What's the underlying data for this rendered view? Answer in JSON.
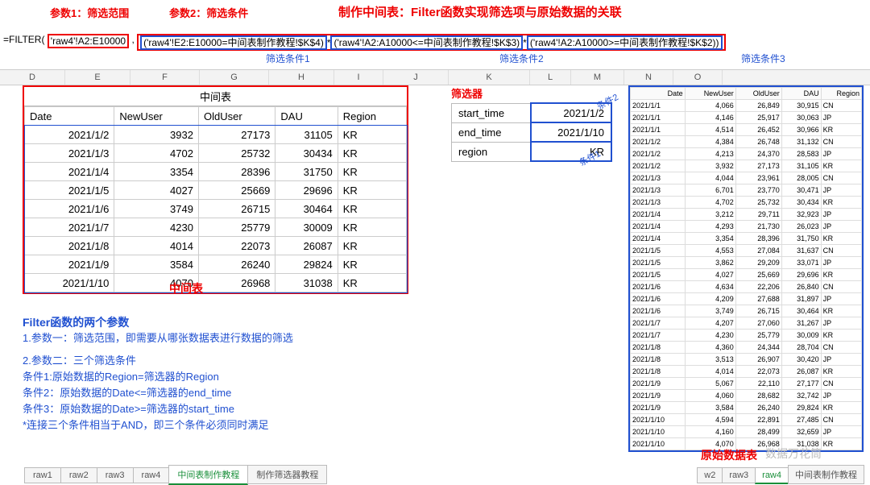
{
  "annotations": {
    "param1": "参数1：筛选范围",
    "param2": "参数2：筛选条件",
    "title": "制作中间表：Filter函数实现筛选项与原始数据的关联",
    "cond1": "筛选条件1",
    "cond2": "筛选条件2",
    "cond3": "筛选条件3",
    "midlabel": "中间表",
    "rawlabel": "原始数据表",
    "tiao1": "条件2",
    "tiao2": "条件1"
  },
  "formula": {
    "prefix": "=FILTER(",
    "range": "'raw4'!A2:E10000",
    "c1": "('raw4'!E2:E10000=中间表制作教程!$K$4)",
    "c2": "('raw4'!A2:A10000<=中间表制作教程!$K$3)",
    "c3": "('raw4'!A2:A10000>=中间表制作教程!$K$2))"
  },
  "cols": [
    "D",
    "E",
    "F",
    "G",
    "H",
    "I",
    "J",
    "K",
    "L",
    "M",
    "N",
    "O"
  ],
  "mid": {
    "title": "中间表",
    "headers": [
      "Date",
      "NewUser",
      "OldUser",
      "DAU",
      "Region"
    ],
    "rows": [
      [
        "2021/1/2",
        "3932",
        "27173",
        "31105",
        "KR"
      ],
      [
        "2021/1/3",
        "4702",
        "25732",
        "30434",
        "KR"
      ],
      [
        "2021/1/4",
        "3354",
        "28396",
        "31750",
        "KR"
      ],
      [
        "2021/1/5",
        "4027",
        "25669",
        "29696",
        "KR"
      ],
      [
        "2021/1/6",
        "3749",
        "26715",
        "30464",
        "KR"
      ],
      [
        "2021/1/7",
        "4230",
        "25779",
        "30009",
        "KR"
      ],
      [
        "2021/1/8",
        "4014",
        "22073",
        "26087",
        "KR"
      ],
      [
        "2021/1/9",
        "3584",
        "26240",
        "29824",
        "KR"
      ],
      [
        "2021/1/10",
        "4070",
        "26968",
        "31038",
        "KR"
      ]
    ]
  },
  "filter": {
    "title": "筛选器",
    "rows": [
      [
        "start_time",
        "2021/1/2"
      ],
      [
        "end_time",
        "2021/1/10"
      ],
      [
        "region",
        "KR"
      ]
    ]
  },
  "raw": {
    "headers": [
      "Date",
      "NewUser",
      "OldUser",
      "DAU",
      "Region"
    ],
    "rows": [
      [
        "2021/1/1",
        "4,066",
        "26,849",
        "30,915",
        "CN"
      ],
      [
        "2021/1/1",
        "4,146",
        "25,917",
        "30,063",
        "JP"
      ],
      [
        "2021/1/1",
        "4,514",
        "26,452",
        "30,966",
        "KR"
      ],
      [
        "2021/1/2",
        "4,384",
        "26,748",
        "31,132",
        "CN"
      ],
      [
        "2021/1/2",
        "4,213",
        "24,370",
        "28,583",
        "JP"
      ],
      [
        "2021/1/2",
        "3,932",
        "27,173",
        "31,105",
        "KR"
      ],
      [
        "2021/1/3",
        "4,044",
        "23,961",
        "28,005",
        "CN"
      ],
      [
        "2021/1/3",
        "6,701",
        "23,770",
        "30,471",
        "JP"
      ],
      [
        "2021/1/3",
        "4,702",
        "25,732",
        "30,434",
        "KR"
      ],
      [
        "2021/1/4",
        "3,212",
        "29,711",
        "32,923",
        "JP"
      ],
      [
        "2021/1/4",
        "4,293",
        "21,730",
        "26,023",
        "JP"
      ],
      [
        "2021/1/4",
        "3,354",
        "28,396",
        "31,750",
        "KR"
      ],
      [
        "2021/1/5",
        "4,553",
        "27,084",
        "31,637",
        "CN"
      ],
      [
        "2021/1/5",
        "3,862",
        "29,209",
        "33,071",
        "JP"
      ],
      [
        "2021/1/5",
        "4,027",
        "25,669",
        "29,696",
        "KR"
      ],
      [
        "2021/1/6",
        "4,634",
        "22,206",
        "26,840",
        "CN"
      ],
      [
        "2021/1/6",
        "4,209",
        "27,688",
        "31,897",
        "JP"
      ],
      [
        "2021/1/6",
        "3,749",
        "26,715",
        "30,464",
        "KR"
      ],
      [
        "2021/1/7",
        "4,207",
        "27,060",
        "31,267",
        "JP"
      ],
      [
        "2021/1/7",
        "4,230",
        "25,779",
        "30,009",
        "KR"
      ],
      [
        "2021/1/8",
        "4,360",
        "24,344",
        "28,704",
        "CN"
      ],
      [
        "2021/1/8",
        "3,513",
        "26,907",
        "30,420",
        "JP"
      ],
      [
        "2021/1/8",
        "4,014",
        "22,073",
        "26,087",
        "KR"
      ],
      [
        "2021/1/9",
        "5,067",
        "22,110",
        "27,177",
        "CN"
      ],
      [
        "2021/1/9",
        "4,060",
        "28,682",
        "32,742",
        "JP"
      ],
      [
        "2021/1/9",
        "3,584",
        "26,240",
        "29,824",
        "KR"
      ],
      [
        "2021/1/10",
        "4,594",
        "22,891",
        "27,485",
        "CN"
      ],
      [
        "2021/1/10",
        "4,160",
        "28,499",
        "32,659",
        "JP"
      ],
      [
        "2021/1/10",
        "4,070",
        "26,968",
        "31,038",
        "KR"
      ]
    ]
  },
  "notes": {
    "h": "Filter函数的两个参数",
    "l1": "1.参数一：筛选范围，即需要从哪张数据表进行数据的筛选",
    "l2": "2.参数二：三个筛选条件",
    "l3": "条件1:原始数据的Region=筛选器的Region",
    "l4": "条件2：原始数据的Date<=筛选器的end_time",
    "l5": "条件3：原始数据的Date>=筛选器的start_time",
    "l6": "*连接三个条件相当于AND，即三个条件必须同时满足"
  },
  "tabs1": [
    "raw1",
    "raw2",
    "raw3",
    "raw4",
    "中间表制作教程",
    "制作筛选器教程"
  ],
  "tabs1_active": 4,
  "tabs2": [
    "w2",
    "raw3",
    "raw4",
    "中间表制作教程"
  ],
  "tabs2_active": 2,
  "watermark": "数据万花筒"
}
